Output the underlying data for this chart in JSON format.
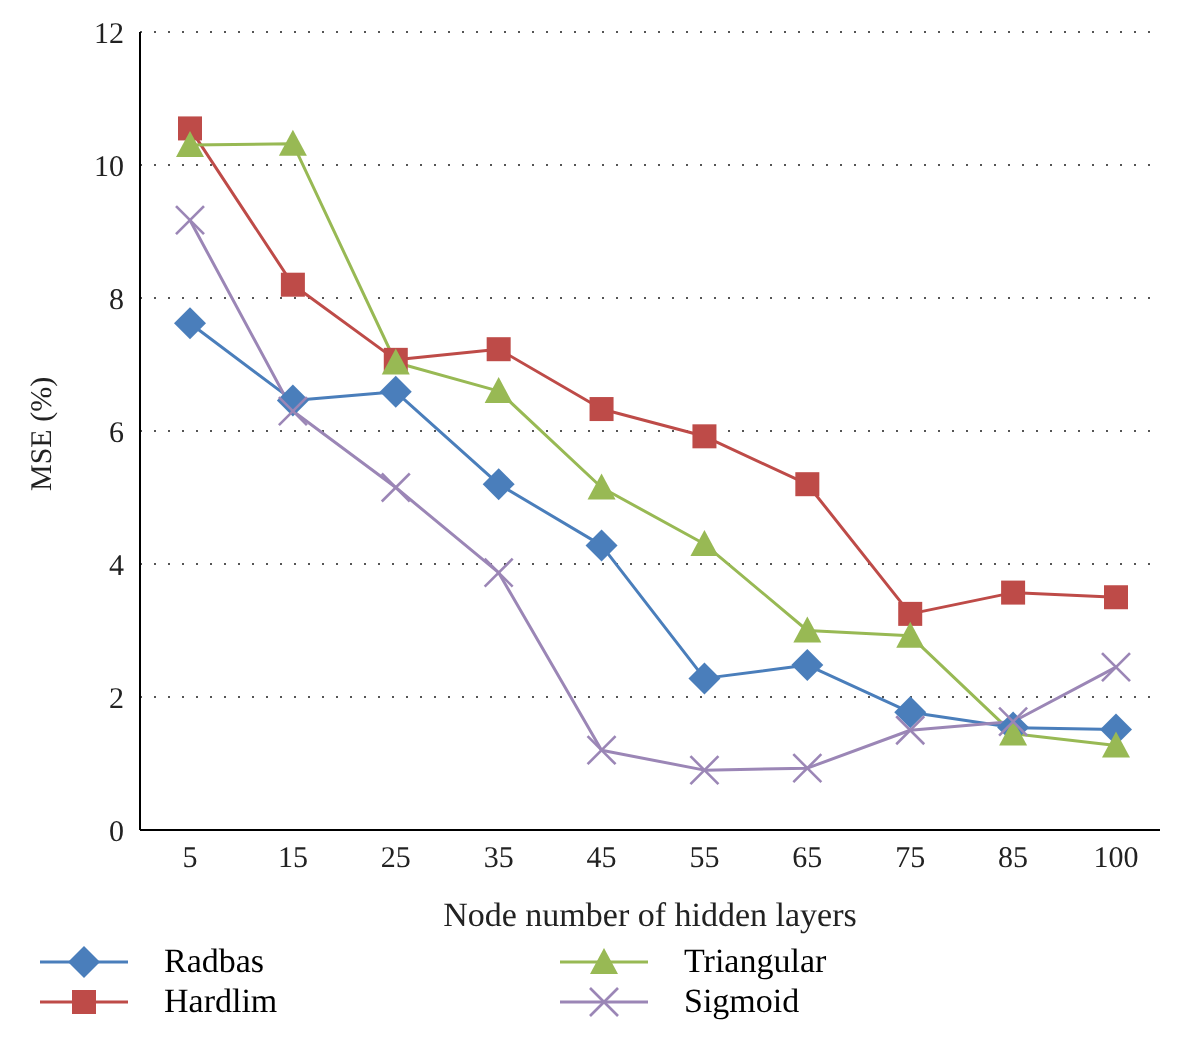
{
  "chart_data": {
    "type": "line",
    "xlabel": "Node number of hidden layers",
    "ylabel": "MSE (%)",
    "categories": [
      "5",
      "15",
      "25",
      "35",
      "45",
      "55",
      "65",
      "75",
      "85",
      "100"
    ],
    "ylim": [
      0,
      12
    ],
    "yticks": [
      0,
      2,
      4,
      6,
      8,
      10,
      12
    ],
    "grid": "y",
    "legend": "bottom",
    "series": [
      {
        "name": "Radbas",
        "color": "#4a7ebb",
        "marker": "diamond",
        "values": [
          7.62,
          6.46,
          6.59,
          5.2,
          4.28,
          2.28,
          2.48,
          1.77,
          1.54,
          1.51
        ]
      },
      {
        "name": "Hardlim",
        "color": "#be4b48",
        "marker": "square",
        "values": [
          10.55,
          8.2,
          7.07,
          7.23,
          6.33,
          5.92,
          5.2,
          3.25,
          3.57,
          3.5
        ]
      },
      {
        "name": "Triangular",
        "color": "#98b954",
        "marker": "triangle",
        "values": [
          10.3,
          10.32,
          7.03,
          6.6,
          5.15,
          4.3,
          3.0,
          2.92,
          1.45,
          1.27
        ]
      },
      {
        "name": "Sigmoid",
        "color": "#9b86b6",
        "marker": "cross",
        "values": [
          9.17,
          6.3,
          5.15,
          3.87,
          1.2,
          0.9,
          0.93,
          1.5,
          1.63,
          2.45
        ]
      }
    ]
  }
}
